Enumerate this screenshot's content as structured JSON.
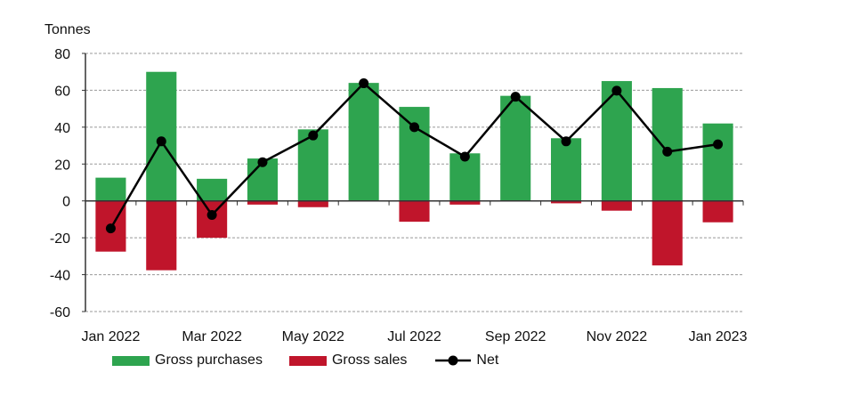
{
  "chart_data": {
    "type": "bar",
    "title": "",
    "ylabel": "Tonnes",
    "xlabel": "",
    "ylim": [
      -60,
      80
    ],
    "yticks": [
      -60,
      -40,
      -20,
      0,
      20,
      40,
      60,
      80
    ],
    "grid": true,
    "legend_position": "bottom",
    "categories": [
      "Jan 2022",
      "Feb 2022",
      "Mar 2022",
      "Apr 2022",
      "May 2022",
      "Jun 2022",
      "Jul 2022",
      "Aug 2022",
      "Sep 2022",
      "Oct 2022",
      "Nov 2022",
      "Dec 2022",
      "Jan 2023"
    ],
    "xtick_labels": [
      "Jan 2022",
      "Mar 2022",
      "May 2022",
      "Jul 2022",
      "Sep 2022",
      "Nov 2022",
      "Jan 2023"
    ],
    "series": [
      {
        "name": "Gross purchases",
        "type": "bar",
        "color": "#2ea44f",
        "values": [
          12.6,
          70,
          12,
          23,
          38.8,
          64,
          51,
          25.8,
          57,
          34,
          65,
          61.2,
          42
        ]
      },
      {
        "name": "Gross sales",
        "type": "bar",
        "color": "#c0152b",
        "values": [
          -27.5,
          -37.6,
          -20,
          -2,
          -3.4,
          0,
          -11.3,
          -2,
          0,
          -1.3,
          -5.3,
          -35,
          -11.6
        ]
      },
      {
        "name": "Net",
        "type": "line",
        "color": "#000000",
        "values": [
          -14.9,
          32.3,
          -7.6,
          21,
          35.5,
          63.8,
          40,
          24,
          56.5,
          32.3,
          59.8,
          26.7,
          30.7
        ]
      }
    ]
  }
}
